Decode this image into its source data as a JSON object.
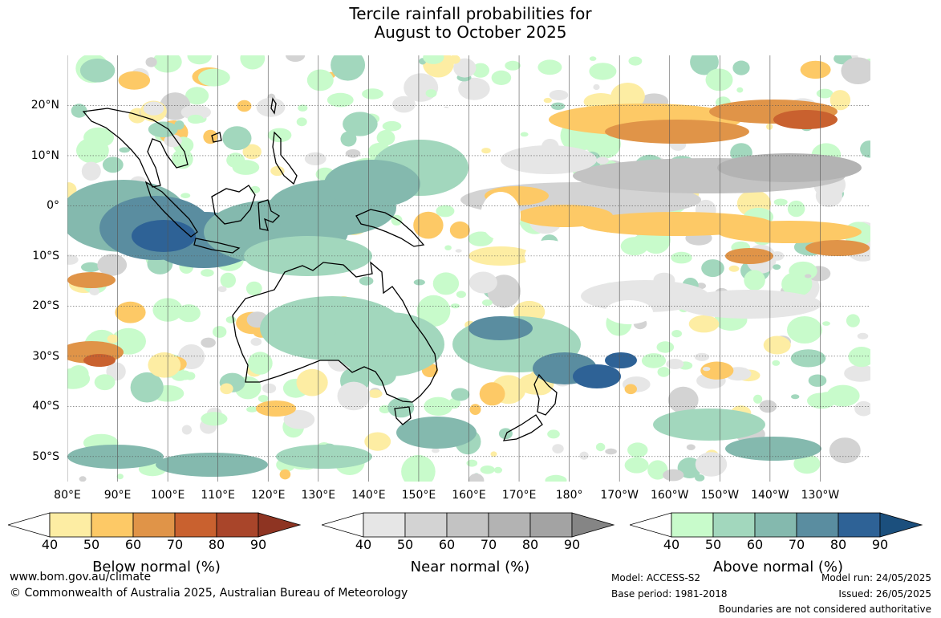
{
  "title": {
    "line1": "Tercile rainfall probabilities for",
    "line2": "August to October 2025"
  },
  "map": {
    "lat_labels": [
      "20°N",
      "10°N",
      "0°",
      "10°S",
      "20°S",
      "30°S",
      "40°S",
      "50°S"
    ],
    "lon_labels": [
      "80°E",
      "90°E",
      "100°E",
      "110°E",
      "120°E",
      "130°E",
      "140°E",
      "150°E",
      "160°E",
      "170°E",
      "180°",
      "170°W",
      "160°W",
      "150°W",
      "140°W",
      "130°W"
    ],
    "lat_range": [
      -55,
      30
    ],
    "lon_range": [
      80,
      240
    ],
    "gridlines": true,
    "outlined_countries": [
      "Australia",
      "New Zealand",
      "Indonesia",
      "Papua New Guinea",
      "Philippines",
      "Mainland Southeast Asia"
    ]
  },
  "colorbars": [
    {
      "label": "Below normal (%)",
      "ticks": [
        "40",
        "50",
        "60",
        "70",
        "80",
        "90"
      ],
      "colors": [
        "#ffffff",
        "#fdeda3",
        "#fdc966",
        "#e09448",
        "#c9612f",
        "#a9452a",
        "#8e3422"
      ]
    },
    {
      "label": "Near normal (%)",
      "ticks": [
        "40",
        "50",
        "60",
        "70",
        "80",
        "90"
      ],
      "colors": [
        "#ffffff",
        "#e6e6e6",
        "#d3d3d3",
        "#c3c3c3",
        "#b3b3b3",
        "#a3a3a3",
        "#858585"
      ]
    },
    {
      "label": "Above normal (%)",
      "ticks": [
        "40",
        "50",
        "60",
        "70",
        "80",
        "90"
      ],
      "colors": [
        "#ffffff",
        "#c8fbcb",
        "#a2d7bd",
        "#84b9ae",
        "#5a8da0",
        "#2e6296",
        "#1b4f7d"
      ]
    }
  ],
  "footer": {
    "website": "www.bom.gov.au/climate",
    "copyright": "© Commonwealth of Australia 2025, Australian Bureau of Meteorology",
    "model": "Model: ACCESS-S2",
    "base_period": "Base period: 1981-2018",
    "model_run": "Model run: 24/05/2025",
    "issued": "Issued: 26/05/2025",
    "disclaimer": "Boundaries are not considered authoritative"
  }
}
